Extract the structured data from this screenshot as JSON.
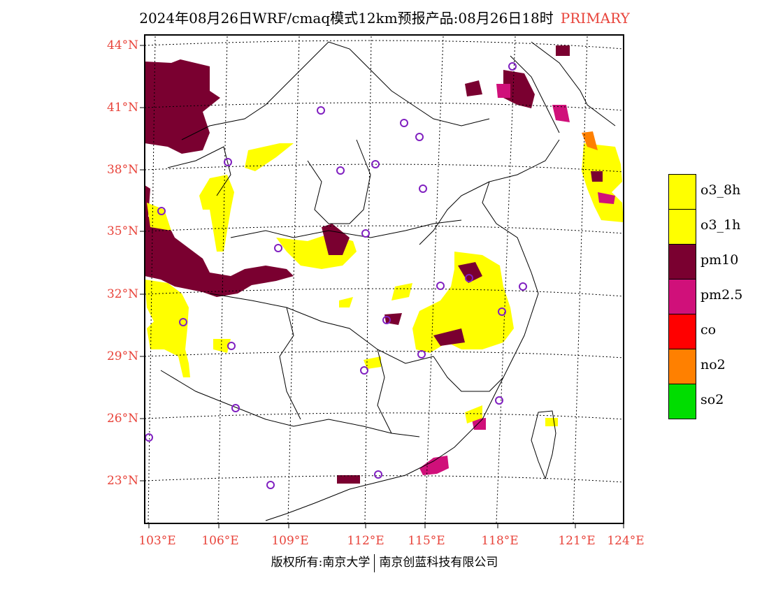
{
  "title": {
    "main": "2024年08月26日WRF/cmaq模式12km预报产品:08月26日18时",
    "tag": "PRIMARY"
  },
  "lat_labels": [
    "44°N",
    "41°N",
    "38°N",
    "35°N",
    "32°N",
    "29°N",
    "26°N",
    "23°N"
  ],
  "lon_labels": [
    "103°E",
    "106°E",
    "109°E",
    "112°E",
    "115°E",
    "118°E",
    "121°E",
    "124°E"
  ],
  "legend": [
    {
      "label": "o3_8h",
      "color": "#ffff00"
    },
    {
      "label": "o3_1h",
      "color": "#ffff00"
    },
    {
      "label": "pm10",
      "color": "#7a0030"
    },
    {
      "label": "pm2.5",
      "color": "#d0107a"
    },
    {
      "label": "co",
      "color": "#ff0000"
    },
    {
      "label": "no2",
      "color": "#ff8000"
    },
    {
      "label": "so2",
      "color": "#00dd00"
    }
  ],
  "footer": {
    "left": "版权所有:南京大学",
    "right": "南京创蓝科技有限公司"
  }
}
